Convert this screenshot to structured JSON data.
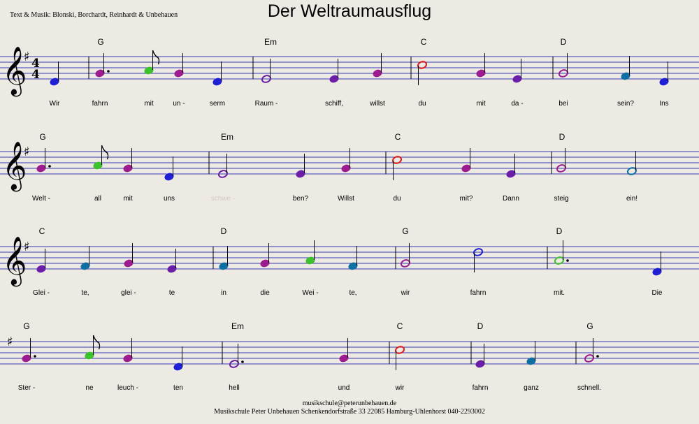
{
  "header": {
    "title": "Der Weltraumausflug",
    "credits": "Text & Musik: Blonski, Borchardt, Reinhardt & Unbehauen"
  },
  "footer": {
    "email": "musikschule@peterunbehauen.de",
    "address": "Musikschule Peter Unbehauen  Schenkendorfstraße 33  22085 Hamburg-Uhlenhorst  040-2293002"
  },
  "key_signature": "♯",
  "time_signature": {
    "top": "4",
    "bottom": "4"
  },
  "clef_icon": "treble-clef-icon",
  "colors": {
    "staff": "#3b3bb0",
    "D4": "#1f1fd6",
    "E4": "#6b1fa8",
    "F#4": "#0e6fa2",
    "G4": "#9c1b8e",
    "A4": "#3cc22a",
    "C5": "#e01c1c",
    "D5": "#1f1fd6"
  },
  "systems": [
    {
      "chords": [
        "G",
        "Em",
        "C",
        "D"
      ],
      "notes": [
        {
          "pitch": "D4",
          "dur": "q",
          "lyric": "Wir"
        },
        {
          "pitch": "G4",
          "dur": "q.",
          "lyric": "fahrn"
        },
        {
          "pitch": "A4",
          "dur": "e",
          "lyric": "mit"
        },
        {
          "pitch": "G4",
          "dur": "q",
          "lyric": "un -"
        },
        {
          "pitch": "D4",
          "dur": "q",
          "lyric": "serm"
        },
        {
          "pitch": "E4",
          "dur": "h",
          "lyric": "Raum -"
        },
        {
          "pitch": "E4",
          "dur": "q",
          "lyric": "schiff,"
        },
        {
          "pitch": "G4",
          "dur": "q",
          "lyric": "willst"
        },
        {
          "pitch": "C5",
          "dur": "h",
          "lyric": "du"
        },
        {
          "pitch": "G4",
          "dur": "q",
          "lyric": "mit"
        },
        {
          "pitch": "E4",
          "dur": "q",
          "lyric": "da -"
        },
        {
          "pitch": "G4",
          "dur": "h",
          "lyric": "bei"
        },
        {
          "pitch": "F#4",
          "dur": "q",
          "lyric": "sein?"
        },
        {
          "pitch": "D4",
          "dur": "q",
          "lyric": "Ins"
        }
      ]
    },
    {
      "chords": [
        "G",
        "Em",
        "C",
        "D"
      ],
      "notes": [
        {
          "pitch": "G4",
          "dur": "q.",
          "lyric": "Welt -"
        },
        {
          "pitch": "A4",
          "dur": "e",
          "lyric": "all"
        },
        {
          "pitch": "G4",
          "dur": "q",
          "lyric": "mit"
        },
        {
          "pitch": "D4",
          "dur": "q",
          "lyric": "uns"
        },
        {
          "pitch": "E4",
          "dur": "h",
          "lyric": "schwe -"
        },
        {
          "pitch": "E4",
          "dur": "q",
          "lyric": "ben?"
        },
        {
          "pitch": "G4",
          "dur": "q",
          "lyric": "Willst"
        },
        {
          "pitch": "C5",
          "dur": "h",
          "lyric": "du"
        },
        {
          "pitch": "G4",
          "dur": "q",
          "lyric": "mit?"
        },
        {
          "pitch": "E4",
          "dur": "q",
          "lyric": "Dann"
        },
        {
          "pitch": "G4",
          "dur": "h",
          "lyric": "steig"
        },
        {
          "pitch": "F#4",
          "dur": "h",
          "lyric": "ein!"
        }
      ]
    },
    {
      "chords": [
        "C",
        "D",
        "G",
        "D"
      ],
      "notes": [
        {
          "pitch": "E4",
          "dur": "q",
          "lyric": "Glei -"
        },
        {
          "pitch": "F#4",
          "dur": "q",
          "lyric": "te,"
        },
        {
          "pitch": "G4",
          "dur": "q",
          "lyric": "glei -"
        },
        {
          "pitch": "E4",
          "dur": "q",
          "lyric": "te"
        },
        {
          "pitch": "F#4",
          "dur": "q",
          "lyric": "in"
        },
        {
          "pitch": "G4",
          "dur": "q",
          "lyric": "die"
        },
        {
          "pitch": "A4",
          "dur": "q",
          "lyric": "Wei -"
        },
        {
          "pitch": "F#4",
          "dur": "q",
          "lyric": "te,"
        },
        {
          "pitch": "G4",
          "dur": "h",
          "lyric": "wir"
        },
        {
          "pitch": "D5",
          "dur": "h",
          "lyric": "fahrn"
        },
        {
          "pitch": "A4",
          "dur": "h.",
          "lyric": "mit."
        },
        {
          "pitch": "D4",
          "dur": "q",
          "lyric": "Die"
        }
      ]
    },
    {
      "chords": [
        "G",
        "Em",
        "C",
        "D",
        "G"
      ],
      "notes": [
        {
          "pitch": "G4",
          "dur": "q.",
          "lyric": "Ster -"
        },
        {
          "pitch": "A4",
          "dur": "e",
          "lyric": "ne"
        },
        {
          "pitch": "G4",
          "dur": "q",
          "lyric": "leuch -"
        },
        {
          "pitch": "D4",
          "dur": "q",
          "lyric": "ten"
        },
        {
          "pitch": "E4",
          "dur": "h.",
          "lyric": "hell"
        },
        {
          "pitch": "G4",
          "dur": "q",
          "lyric": "und"
        },
        {
          "pitch": "C5",
          "dur": "h",
          "lyric": "wir"
        },
        {
          "pitch": "E4",
          "dur": "q",
          "lyric": "fahrn"
        },
        {
          "pitch": "F#4",
          "dur": "q",
          "lyric": "ganz"
        },
        {
          "pitch": "G4",
          "dur": "h.",
          "lyric": "schnell."
        }
      ]
    }
  ]
}
